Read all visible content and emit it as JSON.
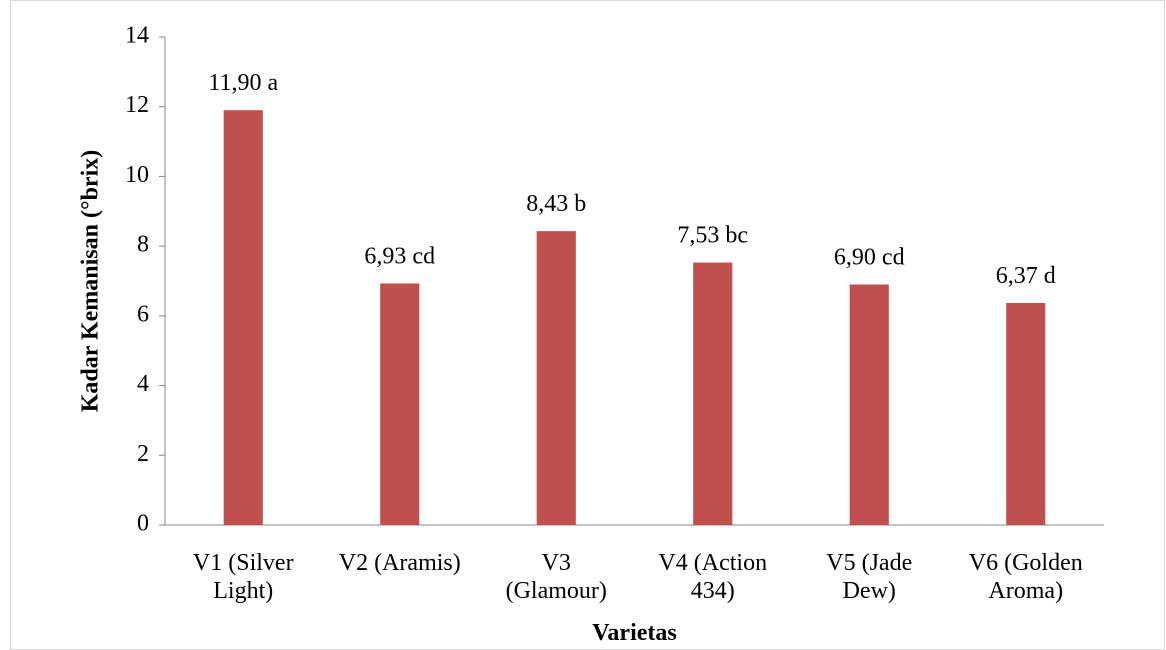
{
  "chart_data": {
    "type": "bar",
    "x_label": "Varietas",
    "y_label": "Kadar Kemanisan (°brix)",
    "categories": [
      "V1 (Silver Light)",
      "V2 (Aramis)",
      "V3 (Glamour)",
      "V4 (Action 434)",
      "V5 (Jade Dew)",
      "V6 (Golden Aroma)"
    ],
    "values": [
      11.9,
      6.93,
      8.43,
      7.53,
      6.9,
      6.37
    ],
    "value_labels": [
      "11,90 a",
      "6,93 cd",
      "8,43 b",
      "7,53 bc",
      "6,90 cd",
      "6,37 d"
    ],
    "color": "#c0504d",
    "ylim": [
      0,
      14
    ],
    "yticks": [
      0,
      2,
      4,
      6,
      8,
      10,
      12,
      14
    ],
    "grid": false
  }
}
